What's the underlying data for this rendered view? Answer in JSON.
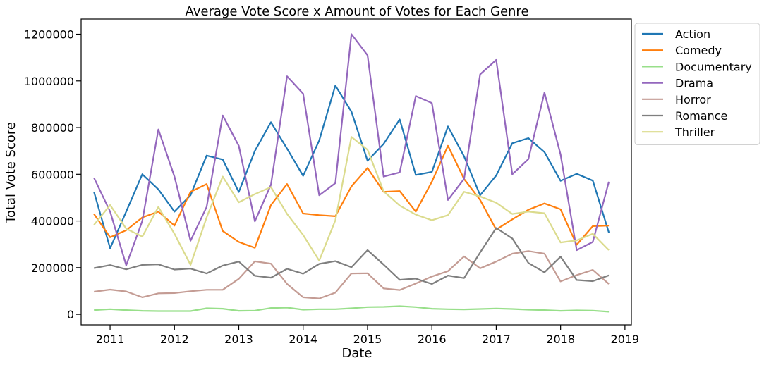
{
  "chart_data": {
    "type": "line",
    "title": "Average Vote Score x Amount of Votes for Each Genre",
    "xlabel": "Date",
    "ylabel": "Total Vote Score",
    "xlim": [
      2010.55,
      2019.1
    ],
    "ylim": [
      -45000,
      1265000
    ],
    "xticks": [
      2011,
      2012,
      2013,
      2014,
      2015,
      2016,
      2017,
      2018,
      2019
    ],
    "xtick_labels": [
      "2011",
      "2012",
      "2013",
      "2014",
      "2015",
      "2016",
      "2017",
      "2018",
      "2019"
    ],
    "yticks": [
      0,
      200000,
      400000,
      600000,
      800000,
      1000000,
      1200000
    ],
    "ytick_labels": [
      "0",
      "200000",
      "400000",
      "600000",
      "800000",
      "1000000",
      "1200000"
    ],
    "grid": false,
    "legend_position": "outside-top-right",
    "x": [
      2010.75,
      2011.0,
      2011.25,
      2011.5,
      2011.75,
      2012.0,
      2012.25,
      2012.5,
      2012.75,
      2013.0,
      2013.25,
      2013.5,
      2013.75,
      2014.0,
      2014.25,
      2014.5,
      2014.75,
      2015.0,
      2015.25,
      2015.5,
      2015.75,
      2016.0,
      2016.25,
      2016.5,
      2016.75,
      2017.0,
      2017.25,
      2017.5,
      2017.75,
      2018.0,
      2018.25,
      2018.5,
      2018.75
    ],
    "series": [
      {
        "name": "Action",
        "color": "#1f77b4",
        "values": [
          525000,
          283000,
          440000,
          600000,
          535000,
          440000,
          510000,
          680000,
          663000,
          524000,
          700000,
          823000,
          710000,
          593000,
          745000,
          980000,
          868000,
          658000,
          730000,
          835000,
          597000,
          610000,
          805000,
          677000,
          510000,
          595000,
          733000,
          755000,
          695000,
          572000,
          602000,
          573000,
          350000
        ]
      },
      {
        "name": "Comedy",
        "color": "#ff7f0e",
        "values": [
          430000,
          330000,
          360000,
          415000,
          440000,
          380000,
          525000,
          558000,
          357000,
          310000,
          285000,
          468000,
          558000,
          432000,
          425000,
          420000,
          548000,
          627000,
          525000,
          528000,
          440000,
          568000,
          722000,
          580000,
          490000,
          363000,
          407000,
          448000,
          475000,
          450000,
          298000,
          378000,
          380000
        ]
      },
      {
        "name": "Documentary",
        "color": "#98df8a",
        "values": [
          18000,
          22000,
          18000,
          15000,
          14000,
          14000,
          14000,
          26000,
          24000,
          15000,
          16000,
          27000,
          29000,
          20000,
          22000,
          22000,
          26000,
          31000,
          32000,
          35000,
          31000,
          24000,
          22000,
          21000,
          23000,
          25000,
          23000,
          20000,
          18000,
          15000,
          17000,
          16000,
          11000
        ]
      },
      {
        "name": "Drama",
        "color": "#9467bd",
        "values": [
          585000,
          440000,
          210000,
          400000,
          792000,
          590000,
          315000,
          460000,
          852000,
          722000,
          398000,
          555000,
          1020000,
          945000,
          510000,
          562000,
          1200000,
          1110000,
          590000,
          608000,
          935000,
          905000,
          490000,
          580000,
          1028000,
          1090000,
          600000,
          665000,
          950000,
          685000,
          275000,
          310000,
          568000
        ]
      },
      {
        "name": "Horror",
        "color": "#c49c94",
        "values": [
          97000,
          106000,
          98000,
          73000,
          90000,
          91000,
          99000,
          105000,
          105000,
          152000,
          227000,
          217000,
          130000,
          73000,
          68000,
          93000,
          175000,
          176000,
          111000,
          104000,
          132000,
          162000,
          185000,
          248000,
          197000,
          226000,
          260000,
          271000,
          260000,
          141000,
          168000,
          190000,
          130000
        ]
      },
      {
        "name": "Romance",
        "color": "#7f7f7f",
        "values": [
          198000,
          211000,
          193000,
          212000,
          214000,
          192000,
          196000,
          175000,
          209000,
          226000,
          165000,
          157000,
          195000,
          174000,
          216000,
          228000,
          202000,
          275000,
          213000,
          148000,
          153000,
          130000,
          166000,
          155000,
          265000,
          370000,
          325000,
          220000,
          180000,
          247000,
          147000,
          142000,
          167000
        ]
      },
      {
        "name": "Thriller",
        "color": "#dbdb8d",
        "values": [
          383000,
          468000,
          367000,
          333000,
          460000,
          345000,
          212000,
          415000,
          590000,
          480000,
          515000,
          545000,
          430000,
          340000,
          230000,
          403000,
          760000,
          705000,
          527000,
          466000,
          427000,
          403000,
          425000,
          525000,
          505000,
          478000,
          430000,
          440000,
          433000,
          308000,
          317000,
          345000,
          275000
        ]
      }
    ]
  }
}
